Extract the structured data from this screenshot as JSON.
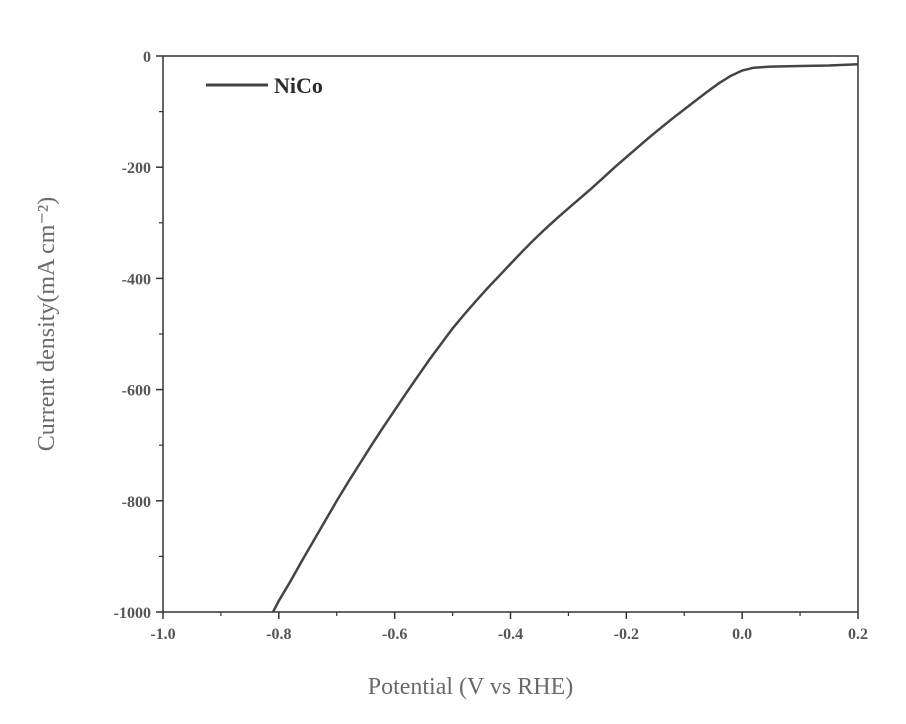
{
  "chart_data": {
    "type": "line",
    "title": "",
    "xlabel": "Potential (V vs RHE)",
    "ylabel": "Current density(mA cm⁻²)",
    "xlim": [
      -1.0,
      0.2
    ],
    "ylim": [
      -1000,
      0
    ],
    "xticks": [
      -1.0,
      -0.8,
      -0.6,
      -0.4,
      -0.2,
      0.0,
      0.2
    ],
    "xtick_labels": [
      "-1.0",
      "-0.8",
      "-0.6",
      "-0.4",
      "-0.2",
      "0.0",
      "0.2"
    ],
    "yticks": [
      0,
      -200,
      -400,
      -600,
      -800,
      -1000
    ],
    "ytick_labels": [
      "0",
      "-200",
      "-400",
      "-600",
      "-800",
      "-1000"
    ],
    "grid": false,
    "legend": {
      "position": "top-left"
    },
    "series": [
      {
        "name": "NiCo",
        "color": "#444444",
        "x": [
          -0.81,
          -0.8,
          -0.78,
          -0.76,
          -0.74,
          -0.72,
          -0.7,
          -0.68,
          -0.66,
          -0.64,
          -0.62,
          -0.6,
          -0.58,
          -0.56,
          -0.54,
          -0.52,
          -0.5,
          -0.48,
          -0.46,
          -0.44,
          -0.42,
          -0.4,
          -0.38,
          -0.36,
          -0.34,
          -0.32,
          -0.3,
          -0.28,
          -0.26,
          -0.24,
          -0.22,
          -0.2,
          -0.18,
          -0.16,
          -0.14,
          -0.12,
          -0.1,
          -0.08,
          -0.06,
          -0.04,
          -0.02,
          0.0,
          0.02,
          0.05,
          0.1,
          0.15,
          0.2
        ],
        "y": [
          -1000,
          -980,
          -945,
          -908,
          -872,
          -836,
          -800,
          -766,
          -733,
          -700,
          -668,
          -637,
          -606,
          -576,
          -546,
          -518,
          -490,
          -465,
          -441,
          -418,
          -396,
          -374,
          -352,
          -331,
          -311,
          -292,
          -274,
          -256,
          -238,
          -219,
          -200,
          -182,
          -164,
          -146,
          -129,
          -112,
          -96,
          -80,
          -64,
          -49,
          -36,
          -26,
          -21,
          -19,
          -18,
          -17,
          -15
        ]
      }
    ]
  }
}
